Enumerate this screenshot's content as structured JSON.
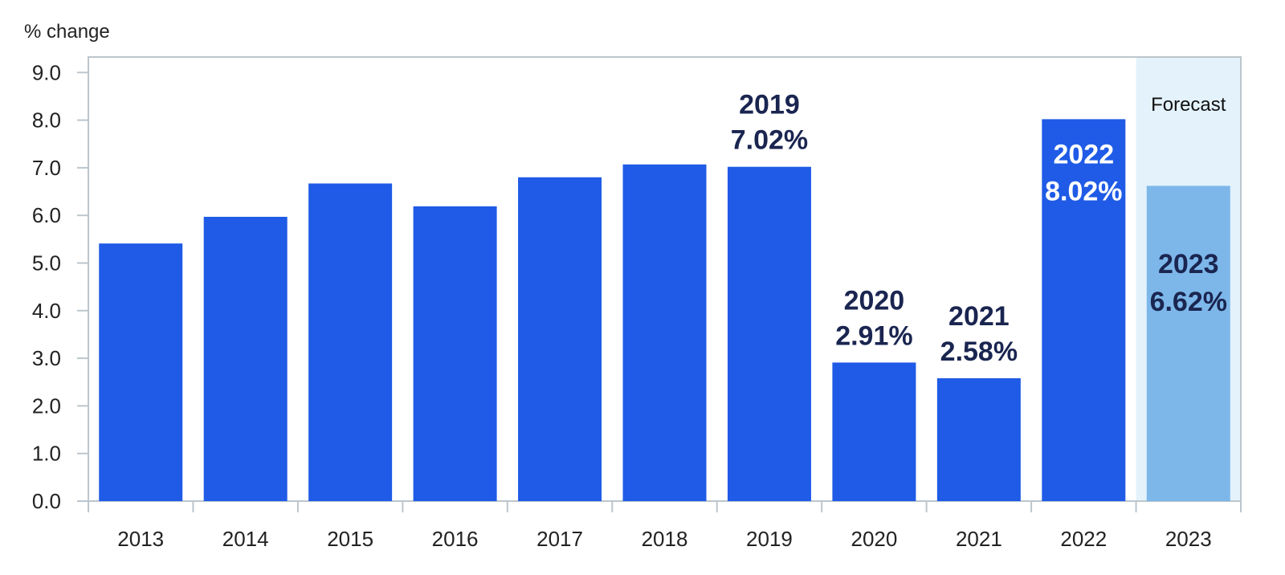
{
  "chart_data": {
    "type": "bar",
    "ylabel": "% change",
    "ylim": [
      0,
      9
    ],
    "yticks": [
      "0.0",
      "1.0",
      "2.0",
      "3.0",
      "4.0",
      "5.0",
      "6.0",
      "7.0",
      "8.0",
      "9.0"
    ],
    "categories": [
      "2013",
      "2014",
      "2015",
      "2016",
      "2017",
      "2018",
      "2019",
      "2020",
      "2021",
      "2022",
      "2023"
    ],
    "values": [
      5.41,
      5.97,
      6.67,
      6.19,
      6.8,
      7.07,
      7.02,
      2.91,
      2.58,
      8.02,
      6.62
    ],
    "forecast": {
      "label": "Forecast",
      "category": "2023"
    },
    "annotations": [
      {
        "category": "2019",
        "year": "2019",
        "value": "7.02%",
        "position": "above"
      },
      {
        "category": "2020",
        "year": "2020",
        "value": "2.91%",
        "position": "above"
      },
      {
        "category": "2021",
        "year": "2021",
        "value": "2.58%",
        "position": "above"
      },
      {
        "category": "2022",
        "year": "2022",
        "value": "8.02%",
        "position": "inside"
      },
      {
        "category": "2023",
        "year": "2023",
        "value": "6.62%",
        "position": "inside"
      }
    ],
    "colors": {
      "bar": "#1f5be6",
      "forecast_bar": "#7db7ea",
      "forecast_band": "#e3f2fb",
      "axis": "#bcc6cc",
      "annotation_dark": "#1a2550",
      "annotation_light": "#ffffff"
    },
    "grid": false,
    "legend": "none"
  }
}
